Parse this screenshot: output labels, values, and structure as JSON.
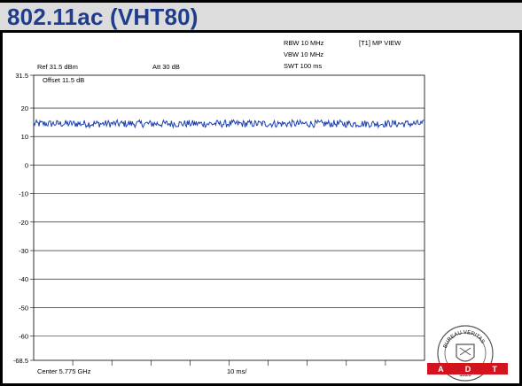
{
  "title": "802.11ac (VHT80)",
  "header": {
    "rbw": "RBW 10 MHz",
    "vbw": "VBW 10 MHz",
    "swt": "SWT 100 ms",
    "mode": "[T1] MP VIEW",
    "ref": "Ref 31.5 dBm",
    "att": "Att  30 dB",
    "offset": "Offset 11.5 dB"
  },
  "footer": {
    "center": "Center 5.775 GHz",
    "span": "10 ms/"
  },
  "logo": {
    "text_top": "BUREAU VERITAS",
    "year": "1828",
    "brand_letters": [
      "A",
      "D",
      "T"
    ],
    "brand_color": "#d2141e"
  },
  "chart_data": {
    "type": "line",
    "xlabel": "",
    "ylabel": "",
    "ylim": [
      -68.5,
      31.5
    ],
    "yticks": [
      31.5,
      20,
      10,
      0,
      -10,
      -20,
      -30,
      -40,
      -50,
      -60,
      -68.5
    ],
    "ytick_labels": [
      "31.5",
      "20",
      "10",
      "0",
      "-10",
      "-20",
      "-30",
      "-40",
      "-50",
      "-60",
      "-68.5"
    ],
    "x_divisions": 10,
    "grid": "horizontal",
    "series": [
      {
        "mean": 14.5,
        "noise_amplitude": 1.3,
        "points": 440,
        "color": "#1a3fb0"
      }
    ]
  }
}
